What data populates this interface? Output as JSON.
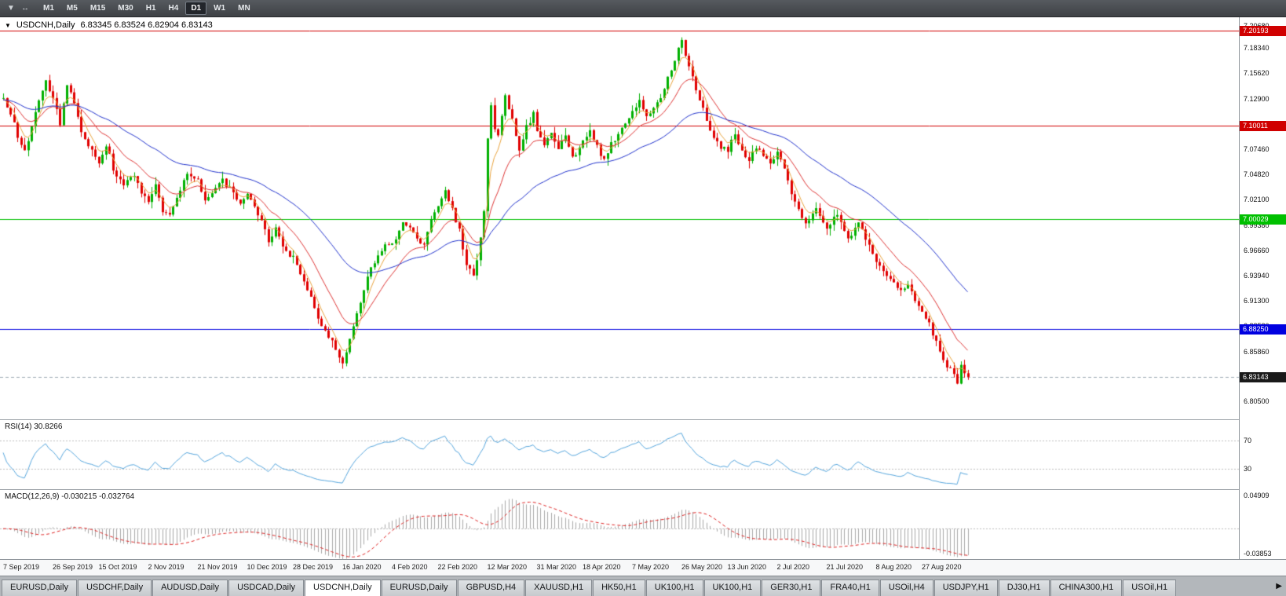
{
  "colors": {
    "bull": "#00b000",
    "bear": "#e00000",
    "ma_fast": "#e8a33d",
    "ma_mid": "#dd3333",
    "ma_slow": "#2233cc",
    "rsi_line": "#55a5dc",
    "macd_hist": "#a8a8a8",
    "macd_signal": "#dd2222",
    "level_dotted": "#bcbcbc",
    "bid_line": "#9aa7b0",
    "bid_tag_bg": "#1a1a1a"
  },
  "icons": {
    "collapse": "▼",
    "toolbar_a": "▼",
    "toolbar_b": "↔",
    "tab_scroll": "▶"
  },
  "toolbar": {
    "timeframes": [
      "M1",
      "M5",
      "M15",
      "M30",
      "H1",
      "H4",
      "D1",
      "W1",
      "MN"
    ],
    "active_timeframe": "D1"
  },
  "chart": {
    "symbol_label": "USDCNH,Daily",
    "ohlc": "6.83345 6.83524 6.82904 6.83143"
  },
  "price_axis": {
    "ticks": [
      "7.20680",
      "7.18340",
      "7.15620",
      "7.12900",
      "7.10180",
      "7.07460",
      "7.04820",
      "7.02100",
      "6.99380",
      "6.96660",
      "6.93940",
      "6.91300",
      "6.88580",
      "6.85860",
      "6.83140",
      "6.80500"
    ]
  },
  "hlines": [
    {
      "price": 7.20193,
      "label": "7.20193",
      "color": "#d00000"
    },
    {
      "price": 7.10011,
      "label": "7.10011",
      "color": "#d00000"
    },
    {
      "price": 7.00029,
      "label": "7.00029",
      "color": "#00c000"
    },
    {
      "price": 6.8825,
      "label": "6.88250",
      "color": "#0000e0"
    }
  ],
  "bid": {
    "price": 6.83143,
    "label": "6.83143"
  },
  "indicators": {
    "rsi": {
      "label": "RSI(14) 30.8266",
      "period": 14,
      "current": 30.8266,
      "levels": [
        70,
        30
      ]
    },
    "macd": {
      "label": "MACD(12,26,9) -0.030215 -0.032764",
      "fast": 12,
      "slow": 26,
      "signal": 9,
      "main": -0.030215,
      "signal_value": -0.032764,
      "axis_max": "0.04909",
      "axis_min": "-0.03853"
    }
  },
  "date_axis": {
    "labels": [
      "7 Sep 2019",
      "26 Sep 2019",
      "15 Oct 2019",
      "2 Nov 2019",
      "21 Nov 2019",
      "10 Dec 2019",
      "28 Dec 2019",
      "16 Jan 2020",
      "4 Feb 2020",
      "22 Feb 2020",
      "12 Mar 2020",
      "31 Mar 2020",
      "18 Apr 2020",
      "7 May 2020",
      "26 May 2020",
      "13 Jun 2020",
      "2 Jul 2020",
      "21 Jul 2020",
      "8 Aug 2020",
      "27 Aug 2020"
    ],
    "indices": [
      0,
      14,
      27,
      41,
      55,
      69,
      82,
      96,
      110,
      123,
      137,
      151,
      164,
      178,
      192,
      205,
      219,
      233,
      247,
      260
    ]
  },
  "tabbar": {
    "tabs": [
      "EURUSD,Daily",
      "USDCHF,Daily",
      "AUDUSD,Daily",
      "USDCAD,Daily",
      "USDCNH,Daily",
      "EURUSD,Daily",
      "GBPUSD,H4",
      "XAUUSD,H1",
      "HK50,H1",
      "UK100,H1",
      "UK100,H1",
      "GER30,H1",
      "FRA40,H1",
      "USOil,H4",
      "USDJPY,H1",
      "DJ30,H1",
      "CHINA300,H1",
      "USOil,H1"
    ],
    "active_index": 4
  },
  "chart_data": {
    "type": "candlestick",
    "symbol": "USDCNH",
    "timeframe": "Daily",
    "y_range": {
      "top": 7.216,
      "bottom": 6.786
    },
    "n_candles": 274,
    "warmup": 40,
    "price_clamp": {
      "high": 7.1995,
      "low": 6.8235
    },
    "moving_averages": [
      {
        "type": "ema",
        "period": 5,
        "color_key": "ma_fast"
      },
      {
        "type": "ema",
        "period": 15,
        "color_key": "ma_mid"
      },
      {
        "type": "ema",
        "period": 45,
        "color_key": "ma_slow"
      }
    ],
    "close_path": [
      [
        0,
        7.128
      ],
      [
        2,
        7.112
      ],
      [
        4,
        7.09
      ],
      [
        6,
        7.072
      ],
      [
        8,
        7.098
      ],
      [
        10,
        7.128
      ],
      [
        12,
        7.148
      ],
      [
        14,
        7.13
      ],
      [
        16,
        7.1
      ],
      [
        18,
        7.146
      ],
      [
        20,
        7.125
      ],
      [
        22,
        7.095
      ],
      [
        25,
        7.072
      ],
      [
        27,
        7.062
      ],
      [
        29,
        7.08
      ],
      [
        31,
        7.055
      ],
      [
        34,
        7.035
      ],
      [
        37,
        7.048
      ],
      [
        39,
        7.03
      ],
      [
        41,
        7.018
      ],
      [
        43,
        7.036
      ],
      [
        45,
        7.01
      ],
      [
        47,
        7.006
      ],
      [
        49,
        7.024
      ],
      [
        52,
        7.048
      ],
      [
        55,
        7.04
      ],
      [
        57,
        7.022
      ],
      [
        59,
        7.03
      ],
      [
        62,
        7.042
      ],
      [
        65,
        7.028
      ],
      [
        67,
        7.014
      ],
      [
        69,
        7.03
      ],
      [
        71,
        7.012
      ],
      [
        73,
        6.996
      ],
      [
        75,
        6.978
      ],
      [
        77,
        6.99
      ],
      [
        79,
        6.972
      ],
      [
        82,
        6.958
      ],
      [
        85,
        6.934
      ],
      [
        88,
        6.905
      ],
      [
        91,
        6.88
      ],
      [
        94,
        6.862
      ],
      [
        96,
        6.848
      ],
      [
        98,
        6.87
      ],
      [
        100,
        6.9
      ],
      [
        103,
        6.938
      ],
      [
        106,
        6.962
      ],
      [
        108,
        6.975
      ],
      [
        110,
        6.972
      ],
      [
        113,
        6.996
      ],
      [
        116,
        6.985
      ],
      [
        119,
        6.972
      ],
      [
        121,
        6.998
      ],
      [
        123,
        7.012
      ],
      [
        125,
        7.03
      ],
      [
        127,
        7.01
      ],
      [
        129,
        6.988
      ],
      [
        131,
        6.952
      ],
      [
        133,
        6.94
      ],
      [
        135,
        6.978
      ],
      [
        136,
        7.01
      ],
      [
        137,
        7.085
      ],
      [
        138,
        7.12
      ],
      [
        139,
        7.095
      ],
      [
        140,
        7.088
      ],
      [
        142,
        7.135
      ],
      [
        144,
        7.105
      ],
      [
        146,
        7.076
      ],
      [
        148,
        7.098
      ],
      [
        150,
        7.112
      ],
      [
        151,
        7.092
      ],
      [
        153,
        7.082
      ],
      [
        155,
        7.095
      ],
      [
        157,
        7.075
      ],
      [
        159,
        7.092
      ],
      [
        161,
        7.065
      ],
      [
        164,
        7.082
      ],
      [
        166,
        7.095
      ],
      [
        168,
        7.078
      ],
      [
        170,
        7.062
      ],
      [
        172,
        7.08
      ],
      [
        175,
        7.098
      ],
      [
        178,
        7.115
      ],
      [
        180,
        7.128
      ],
      [
        182,
        7.108
      ],
      [
        184,
        7.12
      ],
      [
        186,
        7.13
      ],
      [
        188,
        7.152
      ],
      [
        190,
        7.172
      ],
      [
        192,
        7.19
      ],
      [
        194,
        7.165
      ],
      [
        196,
        7.14
      ],
      [
        198,
        7.12
      ],
      [
        200,
        7.095
      ],
      [
        203,
        7.078
      ],
      [
        205,
        7.075
      ],
      [
        207,
        7.09
      ],
      [
        209,
        7.074
      ],
      [
        211,
        7.064
      ],
      [
        213,
        7.078
      ],
      [
        215,
        7.07
      ],
      [
        217,
        7.062
      ],
      [
        219,
        7.072
      ],
      [
        221,
        7.052
      ],
      [
        224,
        7.018
      ],
      [
        227,
        6.996
      ],
      [
        230,
        7.01
      ],
      [
        233,
        6.992
      ],
      [
        236,
        7.006
      ],
      [
        239,
        6.98
      ],
      [
        242,
        6.996
      ],
      [
        245,
        6.972
      ],
      [
        247,
        6.956
      ],
      [
        250,
        6.94
      ],
      [
        253,
        6.925
      ],
      [
        256,
        6.93
      ],
      [
        258,
        6.915
      ],
      [
        260,
        6.902
      ],
      [
        262,
        6.888
      ],
      [
        264,
        6.868
      ],
      [
        266,
        6.85
      ],
      [
        268,
        6.838
      ],
      [
        270,
        6.826
      ],
      [
        271,
        6.845
      ],
      [
        272,
        6.838
      ],
      [
        273,
        6.8314
      ]
    ]
  }
}
